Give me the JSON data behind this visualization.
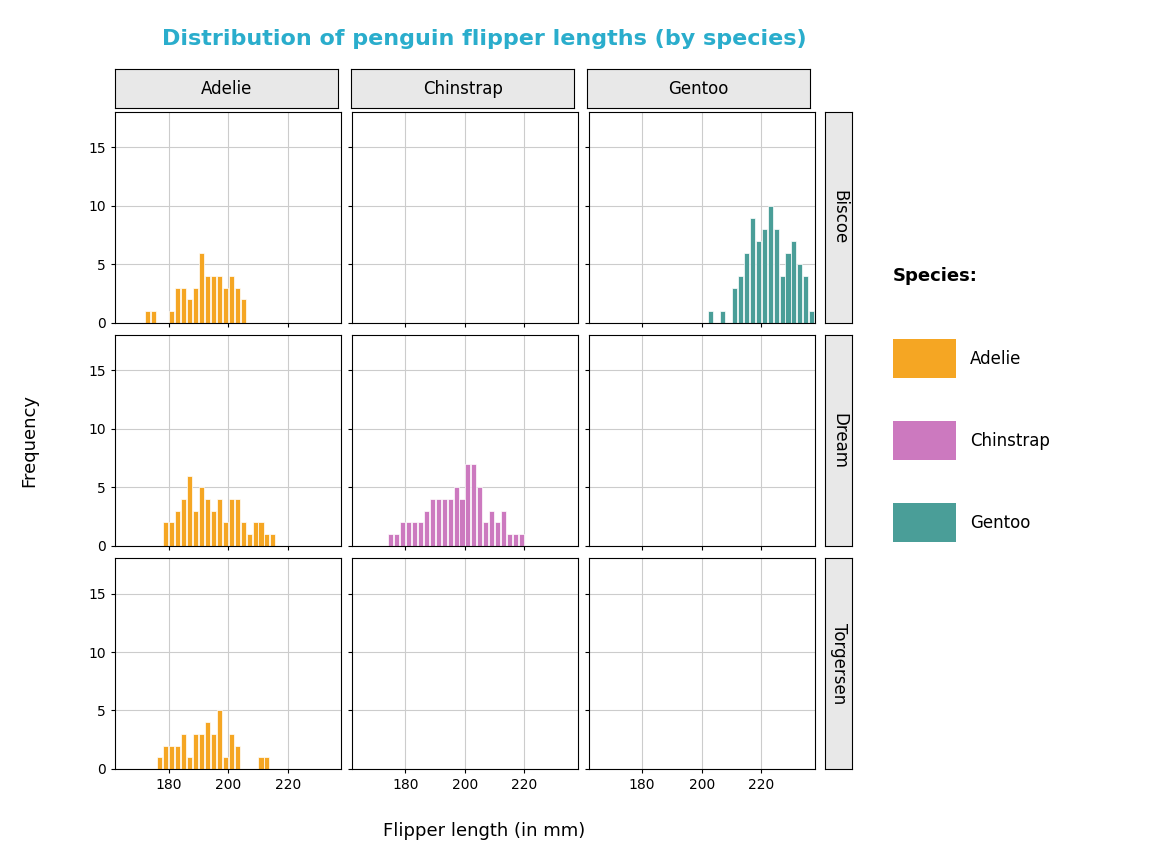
{
  "title": "Distribution of penguin flipper lengths (by species)",
  "title_color": "#2AADCC",
  "xlabel": "Flipper length (in mm)",
  "ylabel": "Frequency",
  "species": [
    "Adelie",
    "Chinstrap",
    "Gentoo"
  ],
  "islands": [
    "Biscoe",
    "Dream",
    "Torgersen"
  ],
  "colors": {
    "Adelie": "#F5A623",
    "Chinstrap": "#CC79BF",
    "Gentoo": "#4A9E98"
  },
  "bin_width": 2,
  "hist_data": {
    "Adelie_Biscoe": [
      172,
      174,
      180,
      182,
      183,
      183,
      184,
      185,
      185,
      186,
      187,
      188,
      188,
      188,
      190,
      190,
      190,
      190,
      190,
      191,
      192,
      192,
      193,
      193,
      194,
      194,
      195,
      195,
      196,
      196,
      197,
      197,
      198,
      198,
      199,
      200,
      200,
      200,
      201,
      202,
      203,
      203,
      204,
      205
    ],
    "Adelie_Dream": [
      178,
      178,
      180,
      180,
      182,
      183,
      183,
      184,
      185,
      185,
      185,
      186,
      186,
      186,
      186,
      186,
      187,
      188,
      188,
      189,
      190,
      190,
      190,
      191,
      191,
      192,
      192,
      193,
      193,
      194,
      195,
      195,
      196,
      196,
      197,
      197,
      198,
      199,
      200,
      200,
      200,
      201,
      202,
      202,
      203,
      203,
      204,
      205,
      207,
      208,
      208,
      210,
      210,
      212,
      215
    ],
    "Adelie_Torgersen": [
      176,
      178,
      178,
      180,
      180,
      182,
      183,
      185,
      185,
      185,
      186,
      188,
      188,
      189,
      190,
      190,
      191,
      192,
      192,
      193,
      193,
      194,
      195,
      195,
      196,
      196,
      196,
      197,
      197,
      198,
      200,
      200,
      200,
      202,
      203,
      210,
      213
    ],
    "Chinstrap_Biscoe": [],
    "Chinstrap_Dream": [
      174,
      176,
      178,
      178,
      180,
      181,
      182,
      183,
      184,
      185,
      186,
      187,
      187,
      188,
      188,
      188,
      189,
      190,
      191,
      191,
      191,
      192,
      192,
      193,
      193,
      194,
      194,
      195,
      195,
      196,
      196,
      197,
      197,
      197,
      198,
      198,
      198,
      199,
      200,
      200,
      200,
      200,
      200,
      201,
      201,
      202,
      202,
      202,
      203,
      203,
      203,
      203,
      204,
      204,
      205,
      205,
      205,
      206,
      207,
      208,
      208,
      209,
      210,
      210,
      212,
      212,
      213,
      215,
      217,
      219
    ],
    "Chinstrap_Torgersen": [],
    "Gentoo_Biscoe": [
      203,
      206,
      210,
      211,
      211,
      212,
      213,
      213,
      213,
      214,
      215,
      215,
      215,
      216,
      216,
      217,
      217,
      217,
      217,
      217,
      218,
      218,
      218,
      219,
      219,
      220,
      220,
      220,
      220,
      221,
      221,
      222,
      222,
      222,
      222,
      222,
      223,
      223,
      223,
      224,
      224,
      224,
      225,
      225,
      225,
      226,
      226,
      227,
      228,
      228,
      228,
      229,
      229,
      230,
      230,
      230,
      231,
      232,
      232,
      232,
      233,
      234,
      235,
      235,
      235,
      236,
      230,
      226,
      224,
      222,
      220,
      218,
      216,
      230,
      232,
      231,
      228,
      224,
      222,
      220,
      218,
      216,
      215,
      214
    ],
    "Gentoo_Dream": [],
    "Gentoo_Torgersen": []
  },
  "xlims": [
    162,
    238
  ],
  "xtick_cols": {
    "Adelie": [
      180,
      200,
      220
    ],
    "Chinstrap": [
      180,
      200,
      220
    ],
    "Gentoo": [
      180,
      200,
      220
    ]
  },
  "ylim": [
    0,
    18
  ],
  "yticks": [
    0,
    5,
    10,
    15
  ],
  "legend_title": "Species:",
  "strip_bg": "#E8E8E8",
  "panel_bg": "#FFFFFF",
  "grid_color": "#CCCCCC",
  "grid_lw": 0.8
}
